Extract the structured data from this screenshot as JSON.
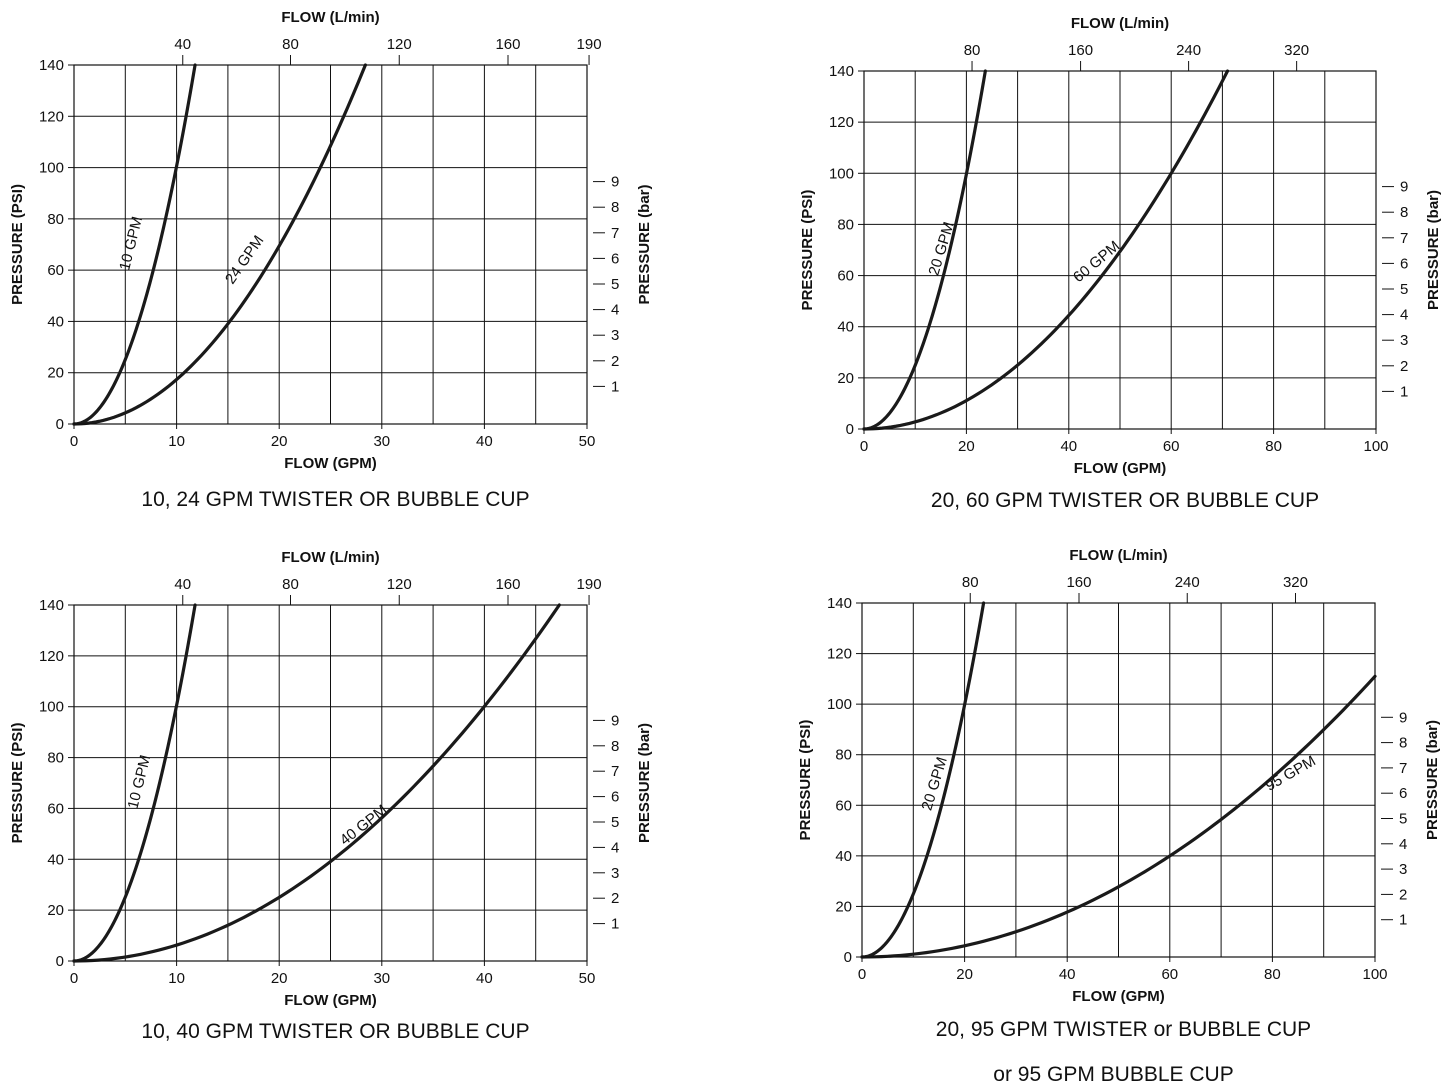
{
  "chart_data": [
    {
      "type": "line",
      "caption": "10, 24 GPM TWISTER OR BUBBLE CUP",
      "xlabel": "FLOW (GPM)",
      "xlabel_top": "FLOW (L/min)",
      "ylabel": "PRESSURE (PSI)",
      "ylabel_right": "PRESSURE (bar)",
      "xlim": [
        0,
        50
      ],
      "ylim": [
        0,
        140
      ],
      "x_ticks": [
        "0",
        "10",
        "20",
        "30",
        "40",
        "50"
      ],
      "y_ticks": [
        "0",
        "20",
        "40",
        "60",
        "80",
        "100",
        "120",
        "140"
      ],
      "top_ticks": [
        {
          "label": "40",
          "gpm": 10.6
        },
        {
          "label": "80",
          "gpm": 21.1
        },
        {
          "label": "120",
          "gpm": 31.7
        },
        {
          "label": "160",
          "gpm": 42.3
        },
        {
          "label": "190",
          "gpm": 50.2
        }
      ],
      "right_ticks": [
        "1",
        "2",
        "3",
        "4",
        "5",
        "6",
        "7",
        "8",
        "9"
      ],
      "grid": true,
      "series": [
        {
          "name": "10 GPM",
          "x": [
            0,
            2,
            4,
            5,
            6,
            8,
            10,
            11,
            11.8
          ],
          "y": [
            0,
            4,
            16,
            25,
            36,
            64,
            100,
            121,
            140
          ]
        },
        {
          "name": "24 GPM",
          "x": [
            0,
            5,
            10,
            15,
            20,
            24,
            26,
            28.4
          ],
          "y": [
            0,
            4.3,
            17.4,
            39,
            69.4,
            100,
            117,
            140
          ]
        }
      ]
    },
    {
      "type": "line",
      "caption": "20, 60 GPM TWISTER OR BUBBLE CUP",
      "xlabel": "FLOW (GPM)",
      "xlabel_top": "FLOW (L/min)",
      "ylabel": "PRESSURE (PSI)",
      "ylabel_right": "PRESSURE (bar)",
      "xlim": [
        0,
        100
      ],
      "ylim": [
        0,
        140
      ],
      "x_ticks": [
        "0",
        "20",
        "40",
        "60",
        "80",
        "100"
      ],
      "y_ticks": [
        "0",
        "20",
        "40",
        "60",
        "80",
        "100",
        "120",
        "140"
      ],
      "top_ticks": [
        {
          "label": "80",
          "gpm": 21.1
        },
        {
          "label": "160",
          "gpm": 42.3
        },
        {
          "label": "240",
          "gpm": 63.4
        },
        {
          "label": "320",
          "gpm": 84.5
        }
      ],
      "right_ticks": [
        "1",
        "2",
        "3",
        "4",
        "5",
        "6",
        "7",
        "8",
        "9"
      ],
      "grid": true,
      "series": [
        {
          "name": "20 GPM",
          "x": [
            0,
            5,
            10,
            15,
            20,
            22,
            23.7
          ],
          "y": [
            0,
            6,
            25,
            56,
            100,
            121,
            140
          ]
        },
        {
          "name": "60 GPM",
          "x": [
            0,
            10,
            20,
            30,
            40,
            50,
            60,
            66,
            71
          ],
          "y": [
            0,
            2.8,
            11,
            25,
            44,
            69,
            100,
            121,
            140
          ]
        }
      ]
    },
    {
      "type": "line",
      "caption": "10, 40 GPM TWISTER OR BUBBLE CUP",
      "xlabel": "FLOW (GPM)",
      "xlabel_top": "FLOW (L/min)",
      "ylabel": "PRESSURE (PSI)",
      "ylabel_right": "PRESSURE (bar)",
      "xlim": [
        0,
        50
      ],
      "ylim": [
        0,
        140
      ],
      "x_ticks": [
        "0",
        "10",
        "20",
        "30",
        "40",
        "50"
      ],
      "y_ticks": [
        "0",
        "20",
        "40",
        "60",
        "80",
        "100",
        "120",
        "140"
      ],
      "top_ticks": [
        {
          "label": "40",
          "gpm": 10.6
        },
        {
          "label": "80",
          "gpm": 21.1
        },
        {
          "label": "120",
          "gpm": 31.7
        },
        {
          "label": "160",
          "gpm": 42.3
        },
        {
          "label": "190",
          "gpm": 50.2
        }
      ],
      "right_ticks": [
        "1",
        "2",
        "3",
        "4",
        "5",
        "6",
        "7",
        "8",
        "9"
      ],
      "grid": true,
      "series": [
        {
          "name": "10 GPM",
          "x": [
            0,
            2,
            4,
            5,
            6,
            8,
            10,
            11,
            11.8
          ],
          "y": [
            0,
            4,
            16,
            25,
            36,
            64,
            100,
            121,
            140
          ]
        },
        {
          "name": "40 GPM",
          "x": [
            0,
            10,
            20,
            25,
            30,
            35,
            40,
            44,
            47.3
          ],
          "y": [
            0,
            6.3,
            25,
            39,
            56,
            77,
            100,
            121,
            140
          ]
        }
      ]
    },
    {
      "type": "line",
      "caption": "20, 95 GPM TWISTER or BUBBLE CUP",
      "caption2": "or 95 GPM BUBBLE CUP",
      "xlabel": "FLOW (GPM)",
      "xlabel_top": "FLOW (L/min)",
      "ylabel": "PRESSURE (PSI)",
      "ylabel_right": "PRESSURE (bar)",
      "xlim": [
        0,
        100
      ],
      "ylim": [
        0,
        140
      ],
      "x_ticks": [
        "0",
        "20",
        "40",
        "60",
        "80",
        "100"
      ],
      "y_ticks": [
        "0",
        "20",
        "40",
        "60",
        "80",
        "100",
        "120",
        "140"
      ],
      "top_ticks": [
        {
          "label": "80",
          "gpm": 21.1
        },
        {
          "label": "160",
          "gpm": 42.3
        },
        {
          "label": "240",
          "gpm": 63.4
        },
        {
          "label": "320",
          "gpm": 84.5
        }
      ],
      "right_ticks": [
        "1",
        "2",
        "3",
        "4",
        "5",
        "6",
        "7",
        "8",
        "9"
      ],
      "grid": true,
      "series": [
        {
          "name": "20 GPM",
          "x": [
            0,
            5,
            10,
            15,
            20,
            22,
            23.7
          ],
          "y": [
            0,
            6,
            25,
            56,
            100,
            121,
            140
          ]
        },
        {
          "name": "95 GPM",
          "x": [
            0,
            20,
            40,
            60,
            80,
            90,
            100
          ],
          "y": [
            0,
            5,
            19,
            42,
            74,
            94,
            111
          ]
        }
      ]
    }
  ]
}
